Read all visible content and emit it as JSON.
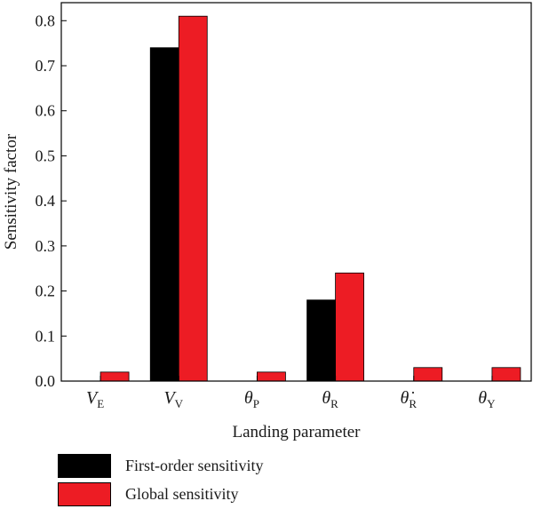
{
  "chart_data": {
    "type": "bar",
    "categories": [
      "V_E",
      "V_V",
      "θ_P",
      "θ_R",
      "θ̇_R",
      "θ_Y"
    ],
    "category_display": [
      {
        "base": "V",
        "sub": "E",
        "italic": true
      },
      {
        "base": "V",
        "sub": "V",
        "italic": true
      },
      {
        "base": "θ",
        "sub": "P",
        "italic": true
      },
      {
        "base": "θ",
        "sub": "R",
        "italic": true
      },
      {
        "base": "θ̇",
        "sub": "R",
        "italic": true
      },
      {
        "base": "θ",
        "sub": "Y",
        "italic": true
      }
    ],
    "series": [
      {
        "name": "First-order sensitivity",
        "color": "#000000",
        "values": [
          0.0,
          0.74,
          0.0,
          0.18,
          0.0,
          0.0
        ]
      },
      {
        "name": "Global sensitivity",
        "color": "#ed1c24",
        "values": [
          0.02,
          0.81,
          0.02,
          0.24,
          0.03,
          0.03
        ]
      }
    ],
    "xlabel": "Landing parameter",
    "ylabel": "Sensitivity factor",
    "ylim": [
      0.0,
      0.84
    ],
    "yticks": [
      "0.0",
      "0.1",
      "0.2",
      "0.3",
      "0.4",
      "0.5",
      "0.6",
      "0.7",
      "0.8"
    ],
    "legend_position": "bottom-left",
    "grid": false
  }
}
